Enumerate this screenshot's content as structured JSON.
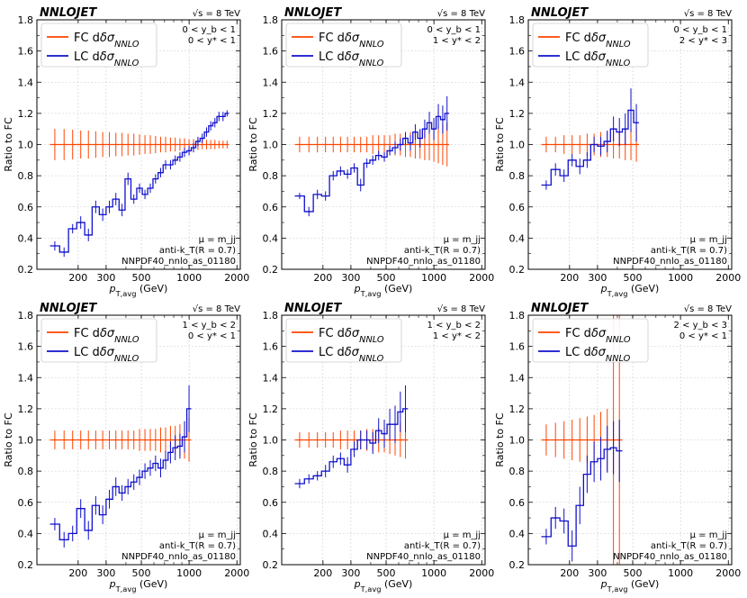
{
  "colors": {
    "fc": "#ff4500",
    "lc": "#1010cc",
    "grid": "#cccccc",
    "legend_border": "#cccccc"
  },
  "chart_data": [
    {
      "type": "line",
      "title": "NNLOJET",
      "energy": "√s = 8 TeV",
      "ylabel": "Ratio to FC",
      "xlabel": "p_T,avg (GeV)",
      "xscale": "log",
      "xlim": [
        110,
        2100
      ],
      "ylim": [
        0.2,
        1.8
      ],
      "xticks": [
        200,
        300,
        500,
        1000,
        2000
      ],
      "xtick_labels": [
        "200",
        "300",
        "500",
        "1000",
        "2000"
      ],
      "yticks": [
        0.2,
        0.4,
        0.6,
        0.8,
        1.0,
        1.2,
        1.4,
        1.6,
        1.8
      ],
      "ytick_labels": [
        "0.2",
        "0.4",
        "0.6",
        "0.8",
        "1.0",
        "1.2",
        "1.4",
        "1.6",
        "1.8"
      ],
      "region": [
        "0 < y_b < 1",
        "0 < y* < 1"
      ],
      "annotations": [
        "μ = m_jj",
        "anti-k_T(R = 0.7)",
        "NNPDF40_nnlo_as_01180"
      ],
      "legend": [
        "FC dδσ_NNLO",
        "LC dδσ_NNLO"
      ],
      "bin_edges": [
        133,
        153,
        174,
        196,
        220,
        245,
        272,
        300,
        330,
        362,
        395,
        430,
        468,
        507,
        548,
        592,
        638,
        686,
        737,
        790,
        846,
        905,
        967,
        1032,
        1101,
        1172,
        1248,
        1327,
        1410,
        1497,
        1588,
        1684,
        1784
      ],
      "series": [
        {
          "name": "FC dδσ_NNLO",
          "values": [
            1.0,
            1.0,
            1.0,
            1.0,
            1.0,
            1.0,
            1.0,
            1.0,
            1.0,
            1.0,
            1.0,
            1.0,
            1.0,
            1.0,
            1.0,
            1.0,
            1.0,
            1.0,
            1.0,
            1.0,
            1.0,
            1.0,
            1.0,
            1.0,
            1.0,
            1.0,
            1.0,
            1.0,
            1.0,
            1.0,
            1.0,
            1.0
          ],
          "errors": [
            0.1,
            0.1,
            0.095,
            0.09,
            0.09,
            0.085,
            0.08,
            0.08,
            0.075,
            0.075,
            0.07,
            0.07,
            0.065,
            0.06,
            0.06,
            0.055,
            0.05,
            0.05,
            0.045,
            0.045,
            0.04,
            0.04,
            0.035,
            0.035,
            0.035,
            0.03,
            0.03,
            0.03,
            0.03,
            0.025,
            0.025,
            0.025
          ]
        },
        {
          "name": "LC dδσ_NNLO",
          "values": [
            0.35,
            0.31,
            0.46,
            0.5,
            0.42,
            0.6,
            0.55,
            0.6,
            0.65,
            0.58,
            0.78,
            0.65,
            0.72,
            0.68,
            0.72,
            0.78,
            0.82,
            0.87,
            0.87,
            0.9,
            0.92,
            0.95,
            0.96,
            0.98,
            1.02,
            1.04,
            1.08,
            1.12,
            1.14,
            1.18,
            1.18,
            1.2
          ],
          "errors": [
            0.03,
            0.03,
            0.03,
            0.04,
            0.04,
            0.04,
            0.04,
            0.04,
            0.04,
            0.04,
            0.04,
            0.03,
            0.03,
            0.03,
            0.03,
            0.03,
            0.03,
            0.03,
            0.03,
            0.03,
            0.03,
            0.03,
            0.03,
            0.03,
            0.03,
            0.03,
            0.03,
            0.03,
            0.03,
            0.03,
            0.03,
            0.02
          ]
        }
      ]
    },
    {
      "type": "line",
      "title": "NNLOJET",
      "energy": "√s = 8 TeV",
      "ylabel": "Ratio to FC",
      "xlabel": "p_T,avg (GeV)",
      "xscale": "log",
      "xlim": [
        110,
        2100
      ],
      "ylim": [
        0.2,
        1.8
      ],
      "xticks": [
        200,
        300,
        500,
        1000,
        2000
      ],
      "xtick_labels": [
        "200",
        "300",
        "500",
        "1000",
        "2000"
      ],
      "yticks": [
        0.2,
        0.4,
        0.6,
        0.8,
        1.0,
        1.2,
        1.4,
        1.6,
        1.8
      ],
      "ytick_labels": [
        "0.2",
        "0.4",
        "0.6",
        "0.8",
        "1.0",
        "1.2",
        "1.4",
        "1.6",
        "1.8"
      ],
      "region": [
        "0 < y_b < 1",
        "1 < y* < 2"
      ],
      "annotations": [
        "μ = m_jj",
        "anti-k_T(R = 0.7)",
        "NNPDF40_nnlo_as_01180"
      ],
      "legend": [
        "FC dδσ_NNLO",
        "LC dδσ_NNLO"
      ],
      "bin_edges": [
        133,
        153,
        174,
        196,
        220,
        245,
        272,
        300,
        330,
        362,
        395,
        430,
        468,
        507,
        548,
        592,
        638,
        686,
        737,
        790,
        846,
        905,
        967,
        1032,
        1101,
        1172,
        1248
      ],
      "series": [
        {
          "name": "FC dδσ_NNLO",
          "values": [
            1.0,
            1.0,
            1.0,
            1.0,
            1.0,
            1.0,
            1.0,
            1.0,
            1.0,
            1.0,
            1.0,
            1.0,
            1.0,
            1.0,
            1.0,
            1.0,
            1.0,
            1.0,
            1.0,
            1.0,
            1.0,
            1.0,
            1.0,
            1.0,
            1.0,
            1.0
          ],
          "errors": [
            0.05,
            0.05,
            0.05,
            0.05,
            0.05,
            0.05,
            0.05,
            0.05,
            0.05,
            0.05,
            0.06,
            0.06,
            0.06,
            0.06,
            0.07,
            0.07,
            0.08,
            0.08,
            0.09,
            0.09,
            0.1,
            0.1,
            0.11,
            0.12,
            0.13,
            0.14
          ]
        },
        {
          "name": "LC dδσ_NNLO",
          "values": [
            0.67,
            0.57,
            0.68,
            0.67,
            0.8,
            0.83,
            0.81,
            0.85,
            0.74,
            0.88,
            0.9,
            0.93,
            0.92,
            0.96,
            0.98,
            1.0,
            1.04,
            1.01,
            1.08,
            1.04,
            1.1,
            1.14,
            1.1,
            1.18,
            1.16,
            1.2
          ],
          "errors": [
            0.02,
            0.03,
            0.03,
            0.03,
            0.03,
            0.03,
            0.03,
            0.03,
            0.04,
            0.03,
            0.03,
            0.03,
            0.03,
            0.03,
            0.04,
            0.04,
            0.04,
            0.05,
            0.05,
            0.06,
            0.06,
            0.07,
            0.07,
            0.08,
            0.09,
            0.11
          ]
        }
      ]
    },
    {
      "type": "line",
      "title": "NNLOJET",
      "energy": "√s = 8 TeV",
      "ylabel": "Ratio to FC",
      "xlabel": "p_T,avg (GeV)",
      "xscale": "log",
      "xlim": [
        110,
        2100
      ],
      "ylim": [
        0.2,
        1.8
      ],
      "xticks": [
        200,
        300,
        500,
        1000,
        2000
      ],
      "xtick_labels": [
        "200",
        "300",
        "500",
        "1000",
        "2000"
      ],
      "yticks": [
        0.2,
        0.4,
        0.6,
        0.8,
        1.0,
        1.2,
        1.4,
        1.6,
        1.8
      ],
      "ytick_labels": [
        "0.2",
        "0.4",
        "0.6",
        "0.8",
        "1.0",
        "1.2",
        "1.4",
        "1.6",
        "1.8"
      ],
      "region": [
        "0 < y_b < 1",
        "2 < y* < 3"
      ],
      "annotations": [
        "μ = m_jj",
        "anti-k_T(R = 0.7)",
        "NNPDF40_nnlo_as_01180"
      ],
      "legend": [
        "FC dδσ_NNLO",
        "LC dδσ_NNLO"
      ],
      "bin_edges": [
        133,
        153,
        174,
        196,
        220,
        245,
        272,
        300,
        330,
        362,
        395,
        430,
        468,
        507,
        548
      ],
      "series": [
        {
          "name": "FC dδσ_NNLO",
          "values": [
            1.0,
            1.0,
            1.0,
            1.0,
            1.0,
            1.0,
            1.0,
            1.0,
            1.0,
            1.0,
            1.0,
            1.0,
            1.0,
            1.0
          ],
          "errors": [
            0.05,
            0.05,
            0.06,
            0.06,
            0.06,
            0.07,
            0.07,
            0.08,
            0.08,
            0.09,
            0.09,
            0.1,
            0.1,
            0.11
          ]
        },
        {
          "name": "LC dδσ_NNLO",
          "values": [
            0.74,
            0.84,
            0.8,
            0.9,
            0.86,
            0.9,
            1.0,
            0.99,
            1.02,
            1.1,
            1.08,
            1.1,
            1.22,
            1.14
          ],
          "errors": [
            0.03,
            0.04,
            0.04,
            0.04,
            0.05,
            0.05,
            0.05,
            0.06,
            0.07,
            0.08,
            0.09,
            0.1,
            0.14,
            0.12
          ]
        }
      ]
    },
    {
      "type": "line",
      "title": "NNLOJET",
      "energy": "√s = 8 TeV",
      "ylabel": "Ratio to FC",
      "xlabel": "p_T,avg (GeV)",
      "xscale": "log",
      "xlim": [
        110,
        2100
      ],
      "ylim": [
        0.2,
        1.8
      ],
      "xticks": [
        200,
        300,
        500,
        1000,
        2000
      ],
      "xtick_labels": [
        "200",
        "300",
        "500",
        "1000",
        "2000"
      ],
      "yticks": [
        0.2,
        0.4,
        0.6,
        0.8,
        1.0,
        1.2,
        1.4,
        1.6,
        1.8
      ],
      "ytick_labels": [
        "0.2",
        "0.4",
        "0.6",
        "0.8",
        "1.0",
        "1.2",
        "1.4",
        "1.6",
        "1.8"
      ],
      "region": [
        "1 < y_b < 2",
        "0 < y* < 1"
      ],
      "annotations": [
        "μ = m_jj",
        "anti-k_T(R = 0.7)",
        "NNPDF40_nnlo_as_01180"
      ],
      "legend": [
        "FC dδσ_NNLO",
        "LC dδσ_NNLO"
      ],
      "bin_edges": [
        133,
        153,
        174,
        196,
        220,
        245,
        272,
        300,
        330,
        362,
        395,
        430,
        468,
        507,
        548,
        592,
        638,
        686,
        737,
        790,
        846,
        905,
        967,
        1032
      ],
      "series": [
        {
          "name": "FC dδσ_NNLO",
          "values": [
            1.0,
            1.0,
            1.0,
            1.0,
            1.0,
            1.0,
            1.0,
            1.0,
            1.0,
            1.0,
            1.0,
            1.0,
            1.0,
            1.0,
            1.0,
            1.0,
            1.0,
            1.0,
            1.0,
            1.0,
            1.0,
            1.0,
            1.0
          ],
          "errors": [
            0.06,
            0.06,
            0.06,
            0.06,
            0.06,
            0.06,
            0.06,
            0.06,
            0.06,
            0.06,
            0.06,
            0.06,
            0.07,
            0.07,
            0.07,
            0.07,
            0.08,
            0.08,
            0.09,
            0.09,
            0.1,
            0.12,
            0.14
          ]
        },
        {
          "name": "LC dδσ_NNLO",
          "values": [
            0.46,
            0.36,
            0.4,
            0.56,
            0.42,
            0.58,
            0.52,
            0.62,
            0.7,
            0.66,
            0.7,
            0.73,
            0.76,
            0.8,
            0.82,
            0.85,
            0.82,
            0.87,
            0.92,
            0.95,
            0.96,
            1.02,
            1.2
          ],
          "errors": [
            0.04,
            0.05,
            0.05,
            0.06,
            0.06,
            0.06,
            0.06,
            0.06,
            0.06,
            0.05,
            0.05,
            0.05,
            0.05,
            0.05,
            0.05,
            0.05,
            0.06,
            0.06,
            0.07,
            0.08,
            0.08,
            0.1,
            0.15
          ]
        }
      ]
    },
    {
      "type": "line",
      "title": "NNLOJET",
      "energy": "√s = 8 TeV",
      "ylabel": "Ratio to FC",
      "xlabel": "p_T,avg (GeV)",
      "xscale": "log",
      "xlim": [
        110,
        2100
      ],
      "ylim": [
        0.2,
        1.8
      ],
      "xticks": [
        200,
        300,
        500,
        1000,
        2000
      ],
      "xtick_labels": [
        "200",
        "300",
        "500",
        "1000",
        "2000"
      ],
      "yticks": [
        0.2,
        0.4,
        0.6,
        0.8,
        1.0,
        1.2,
        1.4,
        1.6,
        1.8
      ],
      "ytick_labels": [
        "0.2",
        "0.4",
        "0.6",
        "0.8",
        "1.0",
        "1.2",
        "1.4",
        "1.6",
        "1.8"
      ],
      "region": [
        "1 < y_b < 2",
        "1 < y* < 2"
      ],
      "annotations": [
        "μ = m_jj",
        "anti-k_T(R = 0.7)",
        "NNPDF40_nnlo_as_01180"
      ],
      "legend": [
        "FC dδσ_NNLO",
        "LC dδσ_NNLO"
      ],
      "bin_edges": [
        133,
        153,
        174,
        196,
        220,
        245,
        272,
        300,
        330,
        362,
        395,
        430,
        468,
        507,
        548,
        592,
        638,
        686
      ],
      "series": [
        {
          "name": "FC dδσ_NNLO",
          "values": [
            1.0,
            1.0,
            1.0,
            1.0,
            1.0,
            1.0,
            1.0,
            1.0,
            1.0,
            1.0,
            1.0,
            1.0,
            1.0,
            1.0,
            1.0,
            1.0,
            1.0
          ],
          "errors": [
            0.05,
            0.05,
            0.05,
            0.05,
            0.05,
            0.06,
            0.06,
            0.06,
            0.06,
            0.07,
            0.07,
            0.08,
            0.08,
            0.09,
            0.1,
            0.11,
            0.12
          ]
        },
        {
          "name": "LC dδσ_NNLO",
          "values": [
            0.72,
            0.75,
            0.77,
            0.8,
            0.86,
            0.88,
            0.84,
            0.94,
            1.0,
            1.0,
            0.98,
            1.06,
            1.04,
            1.1,
            1.1,
            1.18,
            1.2
          ],
          "errors": [
            0.03,
            0.03,
            0.03,
            0.04,
            0.04,
            0.04,
            0.05,
            0.05,
            0.06,
            0.06,
            0.07,
            0.08,
            0.09,
            0.1,
            0.12,
            0.13,
            0.15
          ]
        }
      ]
    },
    {
      "type": "line",
      "title": "NNLOJET",
      "energy": "√s = 8 TeV",
      "ylabel": "Ratio to FC",
      "xlabel": "p_T,avg (GeV)",
      "xscale": "log",
      "xlim": [
        110,
        2100
      ],
      "ylim": [
        0.2,
        1.8
      ],
      "xticks": [
        200,
        300,
        500,
        1000,
        2000
      ],
      "xtick_labels": [
        "200",
        "300",
        "500",
        "1000",
        "2000"
      ],
      "yticks": [
        0.2,
        0.4,
        0.6,
        0.8,
        1.0,
        1.2,
        1.4,
        1.6,
        1.8
      ],
      "ytick_labels": [
        "0.2",
        "0.4",
        "0.6",
        "0.8",
        "1.0",
        "1.2",
        "1.4",
        "1.6",
        "1.8"
      ],
      "region": [
        "2 < y_b < 3",
        "0 < y* < 1"
      ],
      "annotations": [
        "μ = m_jj",
        "anti-k_T(R = 0.7)",
        "NNPDF40_nnlo_as_01180"
      ],
      "legend": [
        "FC dδσ_NNLO",
        "LC dδσ_NNLO"
      ],
      "bin_edges": [
        133,
        153,
        174,
        196,
        220,
        245,
        272,
        300,
        330,
        362,
        395,
        430
      ],
      "series": [
        {
          "name": "FC dδσ_NNLO",
          "values": [
            1.0,
            1.0,
            1.0,
            1.0,
            1.0,
            1.0,
            1.0,
            1.0,
            1.0,
            1.0,
            1.0
          ],
          "errors": [
            0.1,
            0.11,
            0.12,
            0.13,
            0.14,
            0.15,
            0.16,
            0.18,
            0.2,
            0.9,
            0.9
          ]
        },
        {
          "name": "LC dδσ_NNLO",
          "values": [
            0.38,
            0.5,
            0.48,
            0.32,
            0.58,
            0.78,
            0.86,
            0.88,
            0.94,
            0.95,
            0.93
          ],
          "errors": [
            0.05,
            0.07,
            0.08,
            0.1,
            0.12,
            0.12,
            0.13,
            0.14,
            0.15,
            0.17,
            0.2
          ]
        }
      ]
    }
  ]
}
